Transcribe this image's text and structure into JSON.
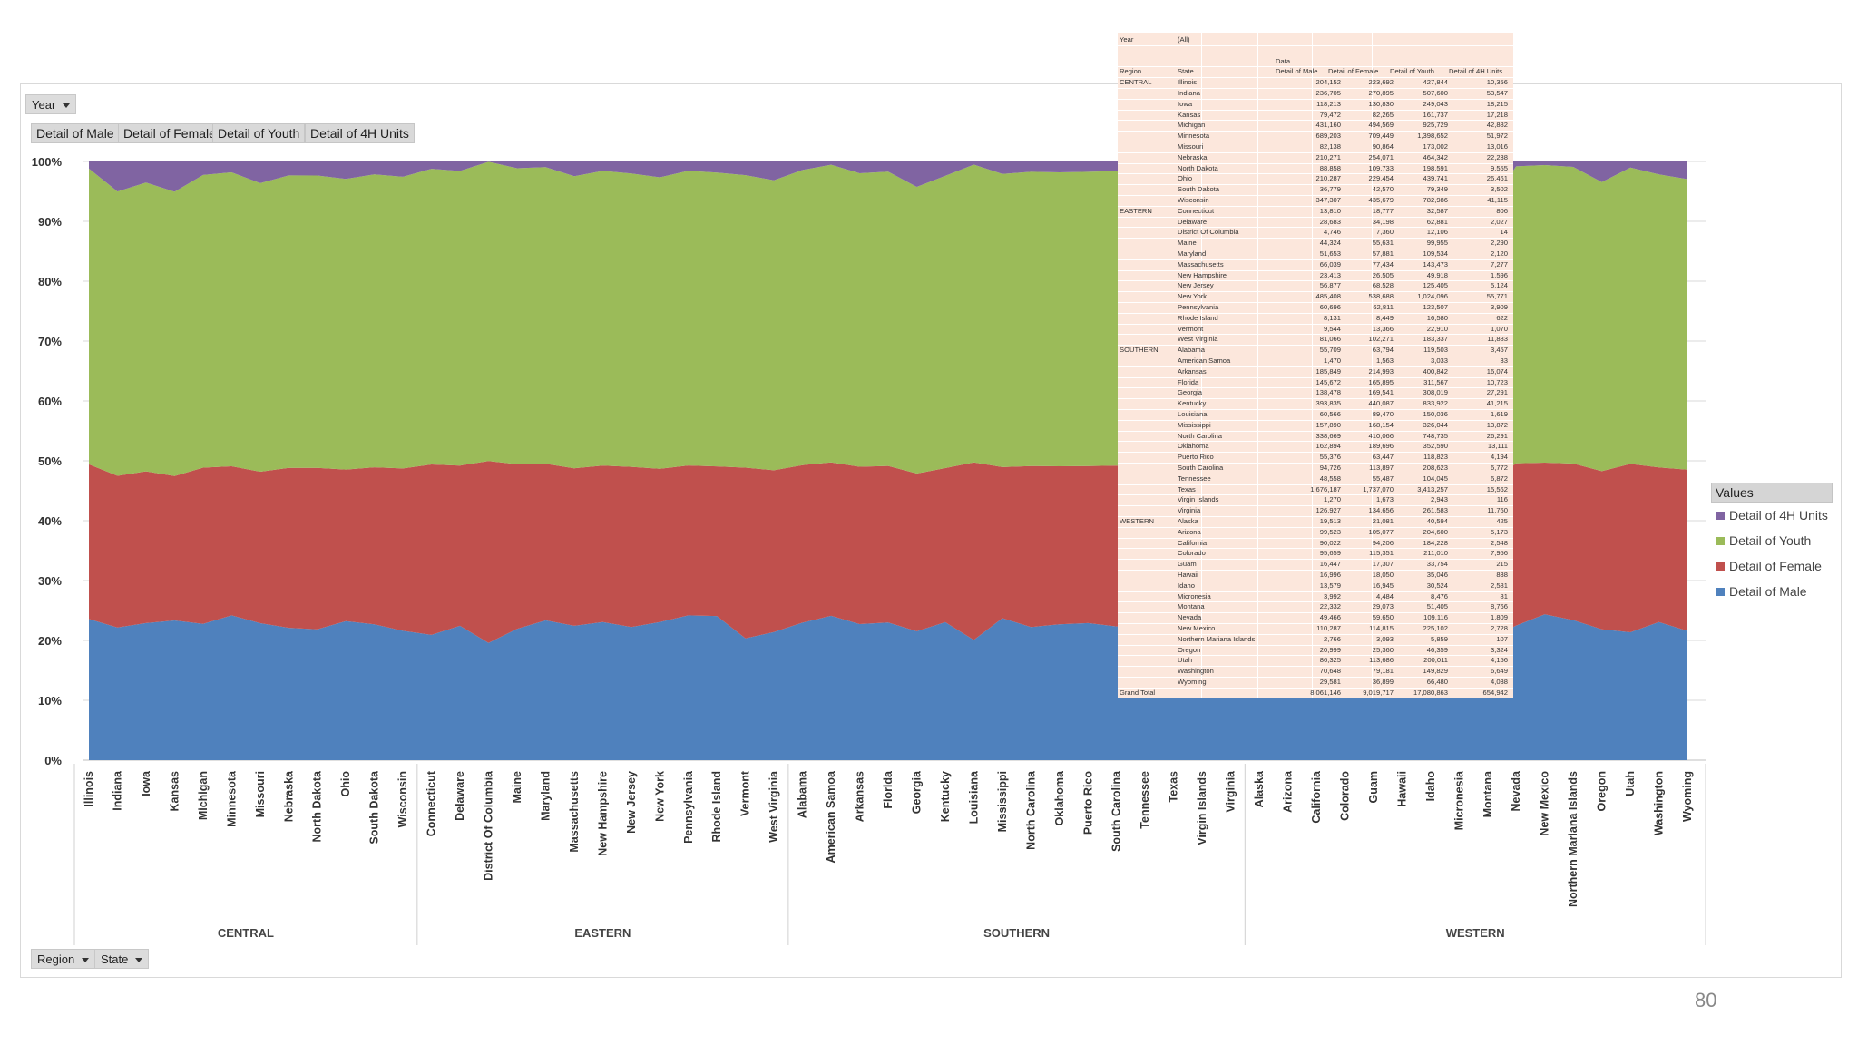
{
  "filters": {
    "year_button": "Year",
    "region_button": "Region",
    "state_button": "State"
  },
  "value_buttons": [
    "Detail of Male",
    "Detail of Female",
    "Detail of Youth",
    "Detail of 4H Units"
  ],
  "legend": {
    "title": "Values",
    "items": [
      {
        "label": "Detail of 4H Units",
        "color": "#8064a2"
      },
      {
        "label": "Detail of Youth",
        "color": "#9bbb59"
      },
      {
        "label": "Detail of Female",
        "color": "#c0504d"
      },
      {
        "label": "Detail of Male",
        "color": "#4f81bd"
      }
    ]
  },
  "page_number": "80",
  "pivot_table": {
    "filter_label": "Year",
    "filter_value": "(All)",
    "data_label": "Data",
    "headers": [
      "Region",
      "State",
      "Detail of Male",
      "Detail of Female",
      "Detail of Youth",
      "Detail of 4H Units"
    ],
    "rows": [
      [
        "CENTRAL",
        "Illinois",
        "204,152",
        "223,692",
        "427,844",
        "10,356"
      ],
      [
        "",
        "Indiana",
        "236,705",
        "270,895",
        "507,600",
        "53,547"
      ],
      [
        "",
        "Iowa",
        "118,213",
        "130,830",
        "249,043",
        "18,215"
      ],
      [
        "",
        "Kansas",
        "79,472",
        "82,265",
        "161,737",
        "17,218"
      ],
      [
        "",
        "Michigan",
        "431,160",
        "494,569",
        "925,729",
        "42,882"
      ],
      [
        "",
        "Minnesota",
        "689,203",
        "709,449",
        "1,398,652",
        "51,972"
      ],
      [
        "",
        "Missouri",
        "82,138",
        "90,864",
        "173,002",
        "13,016"
      ],
      [
        "",
        "Nebraska",
        "210,271",
        "254,071",
        "464,342",
        "22,238"
      ],
      [
        "",
        "North Dakota",
        "88,858",
        "109,733",
        "198,591",
        "9,555"
      ],
      [
        "",
        "Ohio",
        "210,287",
        "229,454",
        "439,741",
        "26,461"
      ],
      [
        "",
        "South Dakota",
        "36,779",
        "42,570",
        "79,349",
        "3,502"
      ],
      [
        "",
        "Wisconsin",
        "347,307",
        "435,679",
        "782,986",
        "41,115"
      ],
      [
        "EASTERN",
        "Connecticut",
        "13,810",
        "18,777",
        "32,587",
        "806"
      ],
      [
        "",
        "Delaware",
        "28,683",
        "34,198",
        "62,881",
        "2,027"
      ],
      [
        "",
        "District Of Columbia",
        "4,746",
        "7,360",
        "12,106",
        "14"
      ],
      [
        "",
        "Maine",
        "44,324",
        "55,631",
        "99,955",
        "2,290"
      ],
      [
        "",
        "Maryland",
        "51,653",
        "57,881",
        "109,534",
        "2,120"
      ],
      [
        "",
        "Massachusetts",
        "66,039",
        "77,434",
        "143,473",
        "7,277"
      ],
      [
        "",
        "New Hampshire",
        "23,413",
        "26,505",
        "49,918",
        "1,596"
      ],
      [
        "",
        "New Jersey",
        "56,877",
        "68,528",
        "125,405",
        "5,124"
      ],
      [
        "",
        "New York",
        "485,408",
        "538,688",
        "1,024,096",
        "55,771"
      ],
      [
        "",
        "Pennsylvania",
        "60,696",
        "62,811",
        "123,507",
        "3,909"
      ],
      [
        "",
        "Rhode Island",
        "8,131",
        "8,449",
        "16,580",
        "622"
      ],
      [
        "",
        "Vermont",
        "9,544",
        "13,366",
        "22,910",
        "1,070"
      ],
      [
        "",
        "West Virginia",
        "81,066",
        "102,271",
        "183,337",
        "11,883"
      ],
      [
        "SOUTHERN",
        "Alabama",
        "55,709",
        "63,794",
        "119,503",
        "3,457"
      ],
      [
        "",
        "American Samoa",
        "1,470",
        "1,563",
        "3,033",
        "33"
      ],
      [
        "",
        "Arkansas",
        "185,849",
        "214,993",
        "400,842",
        "16,074"
      ],
      [
        "",
        "Florida",
        "145,672",
        "165,895",
        "311,567",
        "10,723"
      ],
      [
        "",
        "Georgia",
        "138,478",
        "169,541",
        "308,019",
        "27,291"
      ],
      [
        "",
        "Kentucky",
        "393,835",
        "440,087",
        "833,922",
        "41,215"
      ],
      [
        "",
        "Louisiana",
        "60,566",
        "89,470",
        "150,036",
        "1,619"
      ],
      [
        "",
        "Mississippi",
        "157,890",
        "168,154",
        "326,044",
        "13,872"
      ],
      [
        "",
        "North Carolina",
        "338,669",
        "410,066",
        "748,735",
        "26,291"
      ],
      [
        "",
        "Oklahoma",
        "162,894",
        "189,696",
        "352,590",
        "13,111"
      ],
      [
        "",
        "Puerto Rico",
        "55,376",
        "63,447",
        "118,823",
        "4,194"
      ],
      [
        "",
        "South Carolina",
        "94,726",
        "113,897",
        "208,623",
        "6,772"
      ],
      [
        "",
        "Tennessee",
        "48,558",
        "55,487",
        "104,045",
        "6,872"
      ],
      [
        "",
        "Texas",
        "1,676,187",
        "1,737,070",
        "3,413,257",
        "15,562"
      ],
      [
        "",
        "Virgin Islands",
        "1,270",
        "1,673",
        "2,943",
        "116"
      ],
      [
        "",
        "Virginia",
        "126,927",
        "134,656",
        "261,583",
        "11,760"
      ],
      [
        "WESTERN",
        "Alaska",
        "19,513",
        "21,081",
        "40,594",
        "425"
      ],
      [
        "",
        "Arizona",
        "99,523",
        "105,077",
        "204,600",
        "5,173"
      ],
      [
        "",
        "California",
        "90,022",
        "94,206",
        "184,228",
        "2,548"
      ],
      [
        "",
        "Colorado",
        "95,659",
        "115,351",
        "211,010",
        "7,956"
      ],
      [
        "",
        "Guam",
        "16,447",
        "17,307",
        "33,754",
        "215"
      ],
      [
        "",
        "Hawaii",
        "16,996",
        "18,050",
        "35,046",
        "838"
      ],
      [
        "",
        "Idaho",
        "13,579",
        "16,945",
        "30,524",
        "2,581"
      ],
      [
        "",
        "Micronesia",
        "3,992",
        "4,484",
        "8,476",
        "81"
      ],
      [
        "",
        "Montana",
        "22,332",
        "29,073",
        "51,405",
        "8,766"
      ],
      [
        "",
        "Nevada",
        "49,466",
        "59,650",
        "109,116",
        "1,809"
      ],
      [
        "",
        "New Mexico",
        "110,287",
        "114,815",
        "225,102",
        "2,728"
      ],
      [
        "",
        "Northern Mariana Islands",
        "2,766",
        "3,093",
        "5,859",
        "107"
      ],
      [
        "",
        "Oregon",
        "20,999",
        "25,360",
        "46,359",
        "3,324"
      ],
      [
        "",
        "Utah",
        "86,325",
        "113,686",
        "200,011",
        "4,156"
      ],
      [
        "",
        "Washington",
        "70,648",
        "79,181",
        "149,829",
        "6,649"
      ],
      [
        "",
        "Wyoming",
        "29,581",
        "36,899",
        "66,480",
        "4,038"
      ],
      [
        "Grand Total",
        "",
        "8,061,146",
        "9,019,717",
        "17,080,863",
        "654,942"
      ]
    ]
  },
  "chart_data": {
    "type": "area",
    "stacked": "percent",
    "ylim": [
      0,
      100
    ],
    "yticks": [
      "0%",
      "10%",
      "20%",
      "30%",
      "40%",
      "50%",
      "60%",
      "70%",
      "80%",
      "90%",
      "100%"
    ],
    "grid": "horizontal",
    "legend_position": "right",
    "categories": [
      "Illinois",
      "Indiana",
      "Iowa",
      "Kansas",
      "Michigan",
      "Minnesota",
      "Missouri",
      "Nebraska",
      "North Dakota",
      "Ohio",
      "South Dakota",
      "Wisconsin",
      "Connecticut",
      "Delaware",
      "District Of Columbia",
      "Maine",
      "Maryland",
      "Massachusetts",
      "New Hampshire",
      "New Jersey",
      "New York",
      "Pennsylvania",
      "Rhode Island",
      "Vermont",
      "West Virginia",
      "Alabama",
      "American Samoa",
      "Arkansas",
      "Florida",
      "Georgia",
      "Kentucky",
      "Louisiana",
      "Mississippi",
      "North Carolina",
      "Oklahoma",
      "Puerto Rico",
      "South Carolina",
      "Tennessee",
      "Texas",
      "Virgin Islands",
      "Virginia",
      "Alaska",
      "Arizona",
      "California",
      "Colorado",
      "Guam",
      "Hawaii",
      "Idaho",
      "Micronesia",
      "Montana",
      "Nevada",
      "New Mexico",
      "Northern Mariana Islands",
      "Oregon",
      "Utah",
      "Washington",
      "Wyoming"
    ],
    "groups": [
      {
        "name": "CENTRAL",
        "count": 12
      },
      {
        "name": "EASTERN",
        "count": 13
      },
      {
        "name": "SOUTHERN",
        "count": 16
      },
      {
        "name": "WESTERN",
        "count": 16
      }
    ],
    "series": [
      {
        "name": "Detail of Male",
        "color": "#4f81bd",
        "values": [
          204152,
          236705,
          118213,
          79472,
          431160,
          689203,
          82138,
          210271,
          88858,
          210287,
          36779,
          347307,
          13810,
          28683,
          4746,
          44324,
          51653,
          66039,
          23413,
          56877,
          485408,
          60696,
          8131,
          9544,
          81066,
          55709,
          1470,
          185849,
          145672,
          138478,
          393835,
          60566,
          157890,
          338669,
          162894,
          55376,
          94726,
          48558,
          1676187,
          1270,
          126927,
          19513,
          99523,
          90022,
          95659,
          16447,
          16996,
          13579,
          3992,
          22332,
          49466,
          110287,
          2766,
          20999,
          86325,
          70648,
          29581
        ]
      },
      {
        "name": "Detail of Female",
        "color": "#c0504d",
        "values": [
          223692,
          270895,
          130830,
          82265,
          494569,
          709449,
          90864,
          254071,
          109733,
          229454,
          42570,
          435679,
          18777,
          34198,
          7360,
          55631,
          57881,
          77434,
          26505,
          68528,
          538688,
          62811,
          8449,
          13366,
          102271,
          63794,
          1563,
          214993,
          165895,
          169541,
          440087,
          89470,
          168154,
          410066,
          189696,
          63447,
          113897,
          55487,
          1737070,
          1673,
          134656,
          21081,
          105077,
          94206,
          115351,
          17307,
          18050,
          16945,
          4484,
          29073,
          59650,
          114815,
          3093,
          25360,
          113686,
          79181,
          36899
        ]
      },
      {
        "name": "Detail of Youth",
        "color": "#9bbb59",
        "values": [
          427844,
          507600,
          249043,
          161737,
          925729,
          1398652,
          173002,
          464342,
          198591,
          439741,
          79349,
          782986,
          32587,
          62881,
          12106,
          99955,
          109534,
          143473,
          49918,
          125405,
          1024096,
          123507,
          16580,
          22910,
          183337,
          119503,
          3033,
          400842,
          311567,
          308019,
          833922,
          150036,
          326044,
          748735,
          352590,
          118823,
          208623,
          104045,
          3413257,
          2943,
          261583,
          40594,
          204600,
          184228,
          211010,
          33754,
          35046,
          30524,
          8476,
          51405,
          109116,
          225102,
          5859,
          46359,
          200011,
          149829,
          66480
        ]
      },
      {
        "name": "Detail of 4H Units",
        "color": "#8064a2",
        "values": [
          10356,
          53547,
          18215,
          17218,
          42882,
          51972,
          13016,
          22238,
          9555,
          26461,
          3502,
          41115,
          806,
          2027,
          14,
          2290,
          2120,
          7277,
          1596,
          5124,
          55771,
          3909,
          622,
          1070,
          11883,
          3457,
          33,
          16074,
          10723,
          27291,
          41215,
          1619,
          13872,
          26291,
          13111,
          4194,
          6772,
          6872,
          15562,
          116,
          11760,
          425,
          5173,
          2548,
          7956,
          215,
          838,
          2581,
          81,
          8766,
          1809,
          2728,
          107,
          3324,
          4156,
          6649,
          4038
        ]
      }
    ]
  }
}
